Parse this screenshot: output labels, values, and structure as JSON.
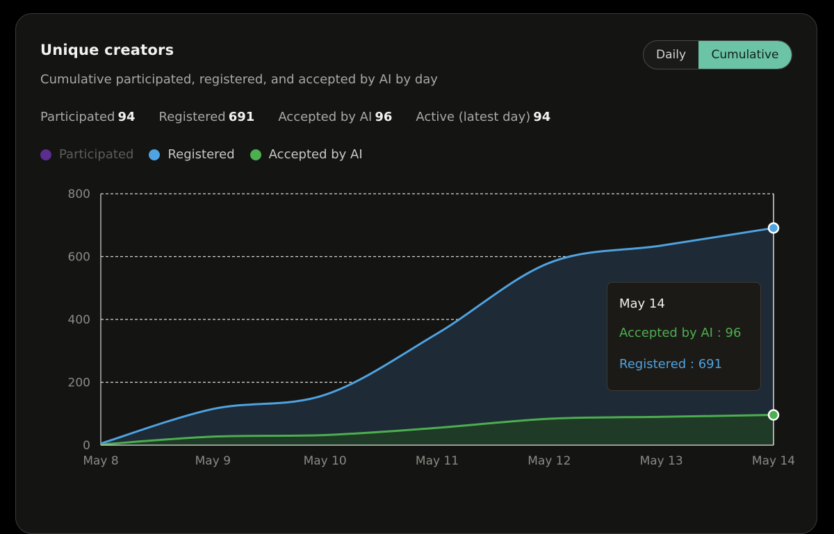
{
  "header": {
    "title": "Unique creators",
    "subtitle": "Cumulative participated, registered, and accepted by AI by day"
  },
  "toggle": {
    "daily": "Daily",
    "cumulative": "Cumulative",
    "selected": "Cumulative"
  },
  "stats": [
    {
      "label": "Participated",
      "value": "94"
    },
    {
      "label": "Registered",
      "value": "691"
    },
    {
      "label": "Accepted by AI",
      "value": "96"
    },
    {
      "label": "Active (latest day)",
      "value": "94"
    }
  ],
  "legend": [
    {
      "label": "Participated",
      "color": "#5b2d8e",
      "active": false
    },
    {
      "label": "Registered",
      "color": "#4fa3e0",
      "active": true
    },
    {
      "label": "Accepted by AI",
      "color": "#4caf50",
      "active": true
    }
  ],
  "tooltip": {
    "date": "May 14",
    "accepted": "Accepted by AI : 96",
    "registered": "Registered : 691"
  },
  "chart_data": {
    "type": "area",
    "x": [
      "May 8",
      "May 9",
      "May 10",
      "May 11",
      "May 12",
      "May 13",
      "May 14"
    ],
    "ylim": [
      0,
      800
    ],
    "yticks": [
      0,
      200,
      400,
      600,
      800
    ],
    "grid": true,
    "series": [
      {
        "name": "Registered",
        "color": "#4fa3e0",
        "values": [
          5,
          115,
          160,
          355,
          580,
          635,
          691
        ]
      },
      {
        "name": "Accepted by AI",
        "color": "#4caf50",
        "values": [
          2,
          27,
          32,
          55,
          84,
          90,
          96
        ]
      }
    ]
  }
}
